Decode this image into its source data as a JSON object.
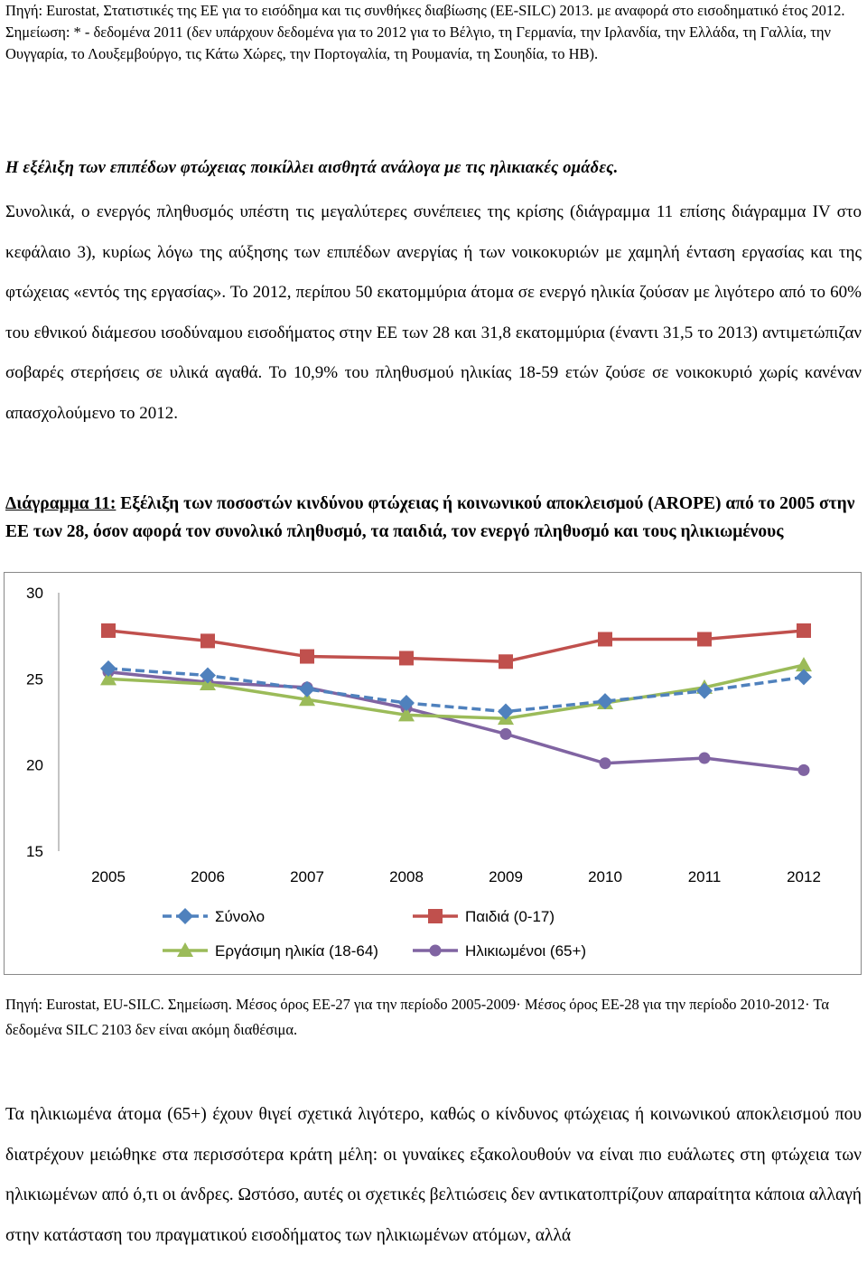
{
  "source_top": "Πηγή: Eurostat, Στατιστικές της ΕΕ για το εισόδημα και τις συνθήκες διαβίωσης (ΕΕ-SILC) 2013. με αναφορά στο εισοδηματικό έτος 2012. Σημείωση: * - δεδομένα 2011 (δεν υπάρχουν δεδομένα για το 2012 για το Βέλγιο, τη Γερμανία, την Ιρλανδία, την Ελλάδα, τη Γαλλία, την Ουγγαρία, το Λουξεμβούργο, τις Κάτω Χώρες, την Πορτογαλία, τη Ρουμανία, τη Σουηδία, το ΗΒ).",
  "heading": "Η εξέλιξη των επιπέδων φτώχειας ποικίλλει αισθητά ανάλογα με τις ηλικιακές ομάδες.",
  "paragraph1": "Συνολικά, ο ενεργός πληθυσμός υπέστη τις μεγαλύτερες συνέπειες της κρίσης (διάγραμμα 11 επίσης διάγραμμα IV στο κεφάλαιο 3), κυρίως λόγω της αύξησης των επιπέδων ανεργίας ή των νοικοκυριών με χαμηλή ένταση εργασίας και της φτώχειας «εντός της εργασίας». Το 2012, περίπου 50 εκατομμύρια άτομα σε ενεργό ηλικία ζούσαν με λιγότερο από το 60% του εθνικού διάμεσου ισοδύναμου εισοδήματος στην ΕΕ των 28 και 31,8 εκατομμύρια (έναντι 31,5 το 2013) αντιμετώπιζαν σοβαρές στερήσεις σε υλικά αγαθά. Το 10,9% του πληθυσμού ηλικίας 18-59 ετών ζούσε σε νοικοκυριό χωρίς κανέναν απασχολούμενο το 2012.",
  "chart_title_underlined": "Διάγραμμα 11:",
  "chart_title_rest": " Εξέλιξη των ποσοστών κινδύνου φτώχειας ή κοινωνικού αποκλεισμού (AROPE) από το 2005 στην ΕΕ των 28, όσον αφορά τον συνολικό πληθυσμό, τα παιδιά, τον ενεργό πληθυσμό και τους ηλικιωμένους",
  "chart_note": "Πηγή: Eurostat, EU-SILC. Σημείωση. Μέσος όρος ΕΕ-27 για την περίοδο 2005-2009· Μέσος όρος ΕΕ-28 για την περίοδο 2010-2012· Τα δεδομένα SILC 2103 δεν είναι ακόμη διαθέσιμα.",
  "paragraph2": "Τα ηλικιωμένα άτομα (65+) έχουν θιγεί σχετικά λιγότερο, καθώς ο κίνδυνος φτώχειας ή κοινωνικού αποκλεισμού που διατρέχουν μειώθηκε στα περισσότερα κράτη μέλη: οι γυναίκες εξακολουθούν να είναι πιο ευάλωτες στη φτώχεια των ηλικιωμένων από ό,τι οι άνδρες. Ωστόσο, αυτές οι σχετικές βελτιώσεις δεν αντικατοπτρίζουν απαραίτητα κάποια αλλαγή στην κατάσταση του πραγματικού εισοδήματος των ηλικιωμένων ατόμων, αλλά",
  "chart_data": {
    "type": "line",
    "x": [
      "2005",
      "2006",
      "2007",
      "2008",
      "2009",
      "2010",
      "2011",
      "2012"
    ],
    "ylim": [
      15,
      30
    ],
    "yticks": [
      "30",
      "25",
      "20",
      "15"
    ],
    "grid": false,
    "legend_position": "bottom",
    "series": [
      {
        "name": "Σύνολο",
        "values": [
          25.6,
          25.2,
          24.4,
          23.6,
          23.1,
          23.7,
          24.3,
          25.1
        ],
        "color": "#4f81bd",
        "marker": "diamond",
        "dash": true
      },
      {
        "name": "Παιδιά (0-17)",
        "values": [
          27.8,
          27.2,
          26.3,
          26.2,
          26.0,
          27.3,
          27.3,
          27.8
        ],
        "color": "#c0504d",
        "marker": "square",
        "dash": false
      },
      {
        "name": "Εργάσιμη ηλικία (18-64)",
        "values": [
          25.0,
          24.7,
          23.8,
          22.9,
          22.7,
          23.6,
          24.5,
          25.8
        ],
        "color": "#9bbb59",
        "marker": "triangle",
        "dash": false
      },
      {
        "name": "Ηλικιωμένοι (65+)",
        "values": [
          25.4,
          24.8,
          24.5,
          23.3,
          21.8,
          20.1,
          20.4,
          19.7
        ],
        "color": "#8064a2",
        "marker": "circle",
        "dash": false
      }
    ]
  }
}
